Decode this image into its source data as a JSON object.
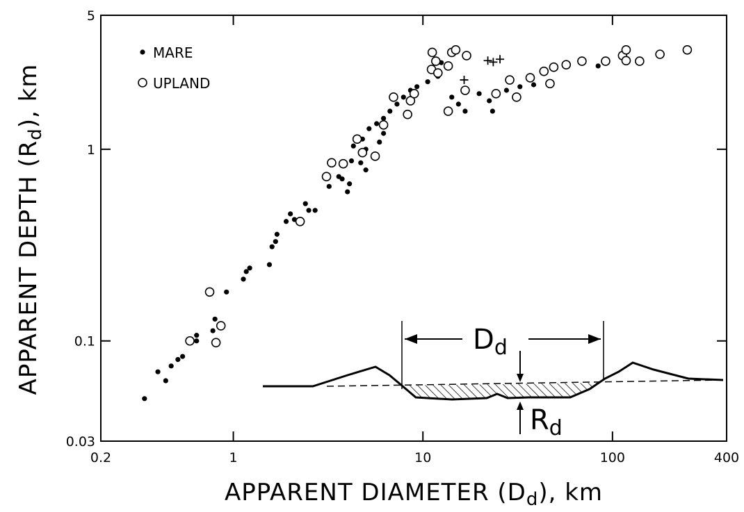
{
  "chart_data": {
    "type": "scatter",
    "xlabel": [
      "APPARENT DIAMETER (D",
      "d",
      "), km"
    ],
    "ylabel": [
      "APPARENT DEPTH (R",
      "d",
      "), km"
    ],
    "xscale": "log",
    "yscale": "log",
    "xlim": [
      0.2,
      400
    ],
    "ylim": [
      0.03,
      5
    ],
    "xticks": [
      0.2,
      1,
      10,
      100,
      400
    ],
    "yticks": [
      0.03,
      0.1,
      1,
      5
    ],
    "grid": false,
    "legend": "upper left",
    "annotations": {
      "diameter": [
        "D",
        "d"
      ],
      "depth": [
        "R",
        "d"
      ]
    },
    "series": [
      {
        "name": "MARE",
        "marker": "filled",
        "color": "#000000",
        "x": [
          0.34,
          0.4,
          0.44,
          0.47,
          0.51,
          0.54,
          0.64,
          0.64,
          0.78,
          0.8,
          0.92,
          1.13,
          1.17,
          1.22,
          1.55,
          1.6,
          1.67,
          1.7,
          1.9,
          2.0,
          2.1,
          2.4,
          2.5,
          2.7,
          3.2,
          3.6,
          3.75,
          4.0,
          4.1,
          3.85,
          4.2,
          4.3,
          4.8,
          5.2,
          5.7,
          6.2,
          6.7,
          7.3,
          7.9,
          8.6,
          9.3,
          10.6,
          12.0,
          12.5,
          14.2,
          15.4,
          16.7,
          19.8,
          22.4,
          23.3,
          27.6,
          32.5,
          38.4,
          84,
          5.9,
          6.2,
          5.0,
          4.7,
          5.0
        ],
        "y": [
          0.05,
          0.069,
          0.062,
          0.074,
          0.08,
          0.083,
          0.1,
          0.107,
          0.113,
          0.13,
          0.18,
          0.21,
          0.23,
          0.24,
          0.25,
          0.31,
          0.33,
          0.36,
          0.42,
          0.46,
          0.43,
          0.52,
          0.48,
          0.48,
          0.64,
          0.72,
          0.7,
          0.6,
          0.66,
          0.83,
          0.87,
          1.04,
          1.13,
          1.28,
          1.36,
          1.45,
          1.58,
          1.72,
          1.87,
          2.03,
          2.12,
          2.25,
          2.4,
          2.83,
          1.87,
          1.72,
          1.58,
          1.95,
          1.79,
          1.58,
          2.03,
          2.12,
          2.17,
          2.72,
          1.09,
          1.21,
          1.0,
          0.85,
          0.78
        ]
      },
      {
        "name": "UPLAND",
        "marker": "open",
        "color": "#000000",
        "x": [
          0.75,
          0.59,
          0.81,
          0.86,
          2.25,
          3.1,
          3.3,
          3.8,
          4.5,
          4.8,
          5.6,
          6.2,
          7.0,
          8.3,
          8.6,
          9.0,
          11.1,
          11.7,
          11.2,
          12.0,
          14.2,
          14.9,
          13.6,
          17.0,
          16.7,
          13.6,
          24.3,
          28.7,
          31.2,
          36.8,
          43.5,
          46.8,
          49,
          57,
          69,
          92,
          113,
          118,
          118,
          139,
          178,
          248
        ],
        "y": [
          0.18,
          0.1,
          0.098,
          0.12,
          0.42,
          0.72,
          0.85,
          0.84,
          1.13,
          0.96,
          0.92,
          1.34,
          1.87,
          1.52,
          1.79,
          1.95,
          2.61,
          2.88,
          3.2,
          2.5,
          3.2,
          3.3,
          2.72,
          3.08,
          2.03,
          1.58,
          1.95,
          2.3,
          1.87,
          2.36,
          2.55,
          2.2,
          2.68,
          2.76,
          2.88,
          2.88,
          3.08,
          3.3,
          2.9,
          2.88,
          3.13,
          3.3
        ]
      },
      {
        "marker": "plus",
        "color": "#000000",
        "x": [
          22,
          23.5,
          25.5,
          16.5
        ],
        "y": [
          2.9,
          2.85,
          2.95,
          2.3
        ]
      }
    ]
  }
}
